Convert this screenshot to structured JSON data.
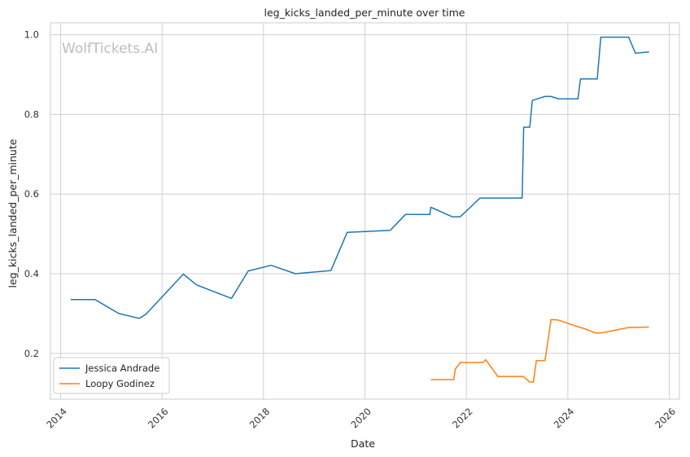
{
  "chart_data": {
    "type": "line",
    "title": "leg_kicks_landed_per_minute over time",
    "xlabel": "Date",
    "ylabel": "leg_kicks_landed_per_minute",
    "watermark": "WolfTickets.AI",
    "xlim": [
      2013.8,
      2026.2
    ],
    "ylim": [
      0.085,
      1.03
    ],
    "xticks": [
      2014,
      2016,
      2018,
      2020,
      2022,
      2024,
      2026
    ],
    "xtick_labels": [
      "2014",
      "2016",
      "2018",
      "2020",
      "2022",
      "2024",
      "2026"
    ],
    "yticks": [
      0.2,
      0.4,
      0.6,
      0.8,
      1.0
    ],
    "ytick_labels": [
      "0.2",
      "0.4",
      "0.6",
      "0.8",
      "1.0"
    ],
    "grid": true,
    "legend_position": "lower-left",
    "series": [
      {
        "name": "Jessica Andrade",
        "color": "#1f77b4",
        "points": [
          [
            2014.2,
            0.335
          ],
          [
            2014.68,
            0.335
          ],
          [
            2015.15,
            0.3
          ],
          [
            2015.55,
            0.288
          ],
          [
            2015.68,
            0.298
          ],
          [
            2016.42,
            0.399
          ],
          [
            2016.68,
            0.372
          ],
          [
            2017.37,
            0.338
          ],
          [
            2017.7,
            0.407
          ],
          [
            2018.15,
            0.421
          ],
          [
            2018.63,
            0.4
          ],
          [
            2019.33,
            0.408
          ],
          [
            2019.65,
            0.504
          ],
          [
            2020.5,
            0.509
          ],
          [
            2020.8,
            0.549
          ],
          [
            2021.28,
            0.549
          ],
          [
            2021.3,
            0.567
          ],
          [
            2021.72,
            0.543
          ],
          [
            2021.88,
            0.543
          ],
          [
            2022.27,
            0.59
          ],
          [
            2023.1,
            0.59
          ],
          [
            2023.13,
            0.768
          ],
          [
            2023.25,
            0.768
          ],
          [
            2023.3,
            0.835
          ],
          [
            2023.55,
            0.845
          ],
          [
            2023.67,
            0.845
          ],
          [
            2023.82,
            0.839
          ],
          [
            2024.2,
            0.839
          ],
          [
            2024.25,
            0.889
          ],
          [
            2024.58,
            0.889
          ],
          [
            2024.65,
            0.994
          ],
          [
            2025.2,
            0.994
          ],
          [
            2025.33,
            0.954
          ],
          [
            2025.6,
            0.957
          ]
        ]
      },
      {
        "name": "Loopy Godinez",
        "color": "#ff7f0e",
        "points": [
          [
            2021.3,
            0.134
          ],
          [
            2021.75,
            0.134
          ],
          [
            2021.78,
            0.16
          ],
          [
            2021.88,
            0.177
          ],
          [
            2022.33,
            0.177
          ],
          [
            2022.38,
            0.184
          ],
          [
            2022.62,
            0.142
          ],
          [
            2023.12,
            0.142
          ],
          [
            2023.25,
            0.128
          ],
          [
            2023.32,
            0.128
          ],
          [
            2023.38,
            0.182
          ],
          [
            2023.55,
            0.182
          ],
          [
            2023.67,
            0.285
          ],
          [
            2023.8,
            0.284
          ],
          [
            2024.22,
            0.266
          ],
          [
            2024.33,
            0.262
          ],
          [
            2024.55,
            0.251
          ],
          [
            2024.65,
            0.251
          ],
          [
            2025.2,
            0.265
          ],
          [
            2025.6,
            0.266
          ]
        ]
      }
    ]
  }
}
